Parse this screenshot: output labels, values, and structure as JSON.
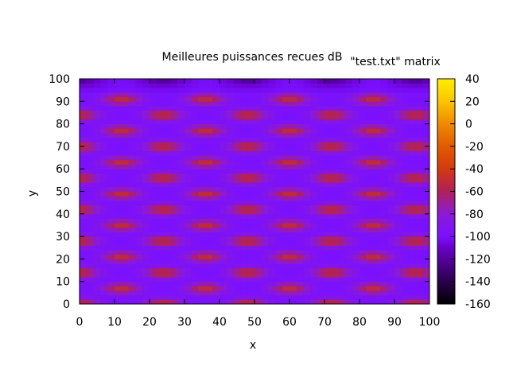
{
  "chart_data": {
    "type": "heatmap",
    "title": "Meilleures puissances recues dB",
    "series_label": "\"test.txt\" matrix",
    "xlabel": "x",
    "ylabel": "y",
    "xlim": [
      0,
      100
    ],
    "ylim": [
      0,
      100
    ],
    "x_ticks": [
      0,
      10,
      20,
      30,
      40,
      50,
      60,
      70,
      80,
      90,
      100
    ],
    "y_ticks": [
      0,
      10,
      20,
      30,
      40,
      50,
      60,
      70,
      80,
      90,
      100
    ],
    "colorbar": {
      "range": [
        -160,
        40
      ],
      "ticks": [
        40,
        20,
        0,
        -20,
        -40,
        -60,
        -80,
        -100,
        -120,
        -140,
        -160
      ],
      "palette": "black-purple-red-orange-yellow"
    },
    "pattern": {
      "description_values": {
        "background_level_db": -100,
        "hotspot_level_db": -50,
        "top_edge_min_db": -150
      },
      "hotspot_grid": {
        "x_centers_odd_rows": [
          12,
          36,
          60,
          84
        ],
        "x_centers_even_rows": [
          0,
          24,
          48,
          72,
          96
        ],
        "row_y_step": 7,
        "first_row_y": 0
      }
    }
  }
}
